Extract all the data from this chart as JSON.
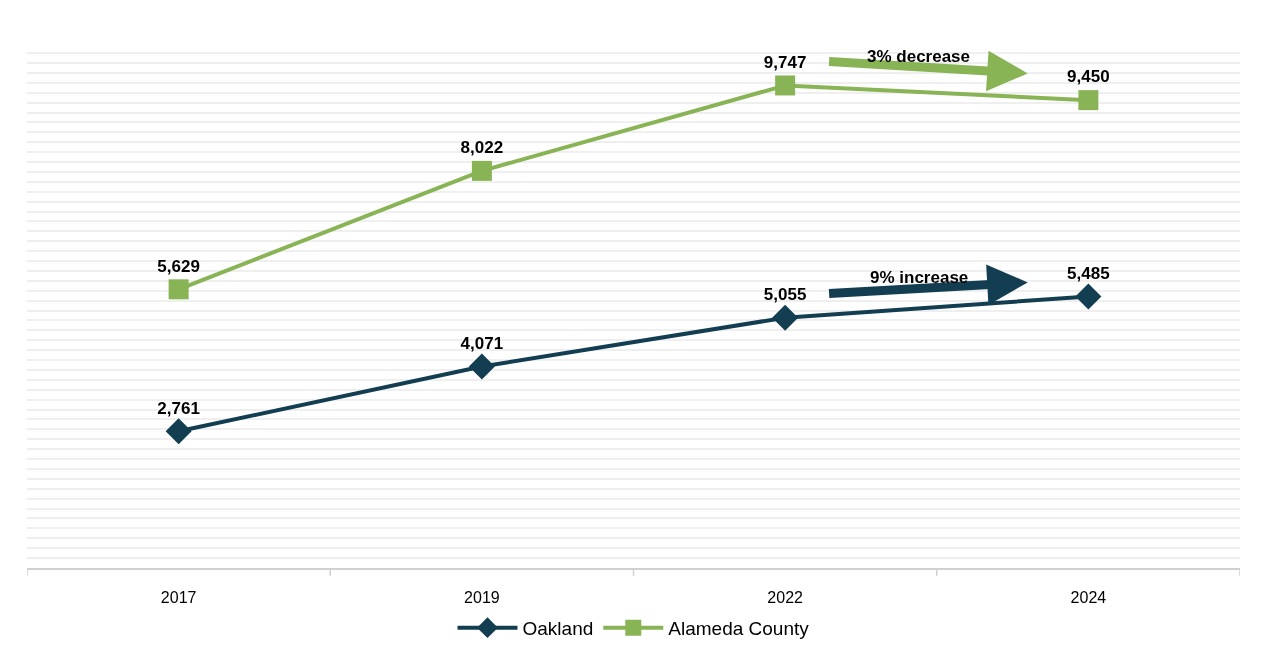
{
  "chart_data": {
    "type": "line",
    "categories": [
      "2017",
      "2019",
      "2022",
      "2024"
    ],
    "series": [
      {
        "name": "Oakland",
        "color": "#133e52",
        "values": [
          2761,
          4071,
          5055,
          5485
        ],
        "value_labels": [
          "2,761",
          "4,071",
          "5,055",
          "5,485"
        ],
        "marker": "diamond"
      },
      {
        "name": "Alameda County",
        "color": "#88b455",
        "values": [
          5629,
          8022,
          9747,
          9450
        ],
        "value_labels": [
          "5,629",
          "8,022",
          "9,747",
          "9,450"
        ],
        "marker": "square"
      }
    ],
    "tick_labels": "x",
    "grid": "y",
    "legend": "bottom",
    "line_style": "solid",
    "annotations": [
      "9% increase",
      "3% decrease"
    ]
  }
}
